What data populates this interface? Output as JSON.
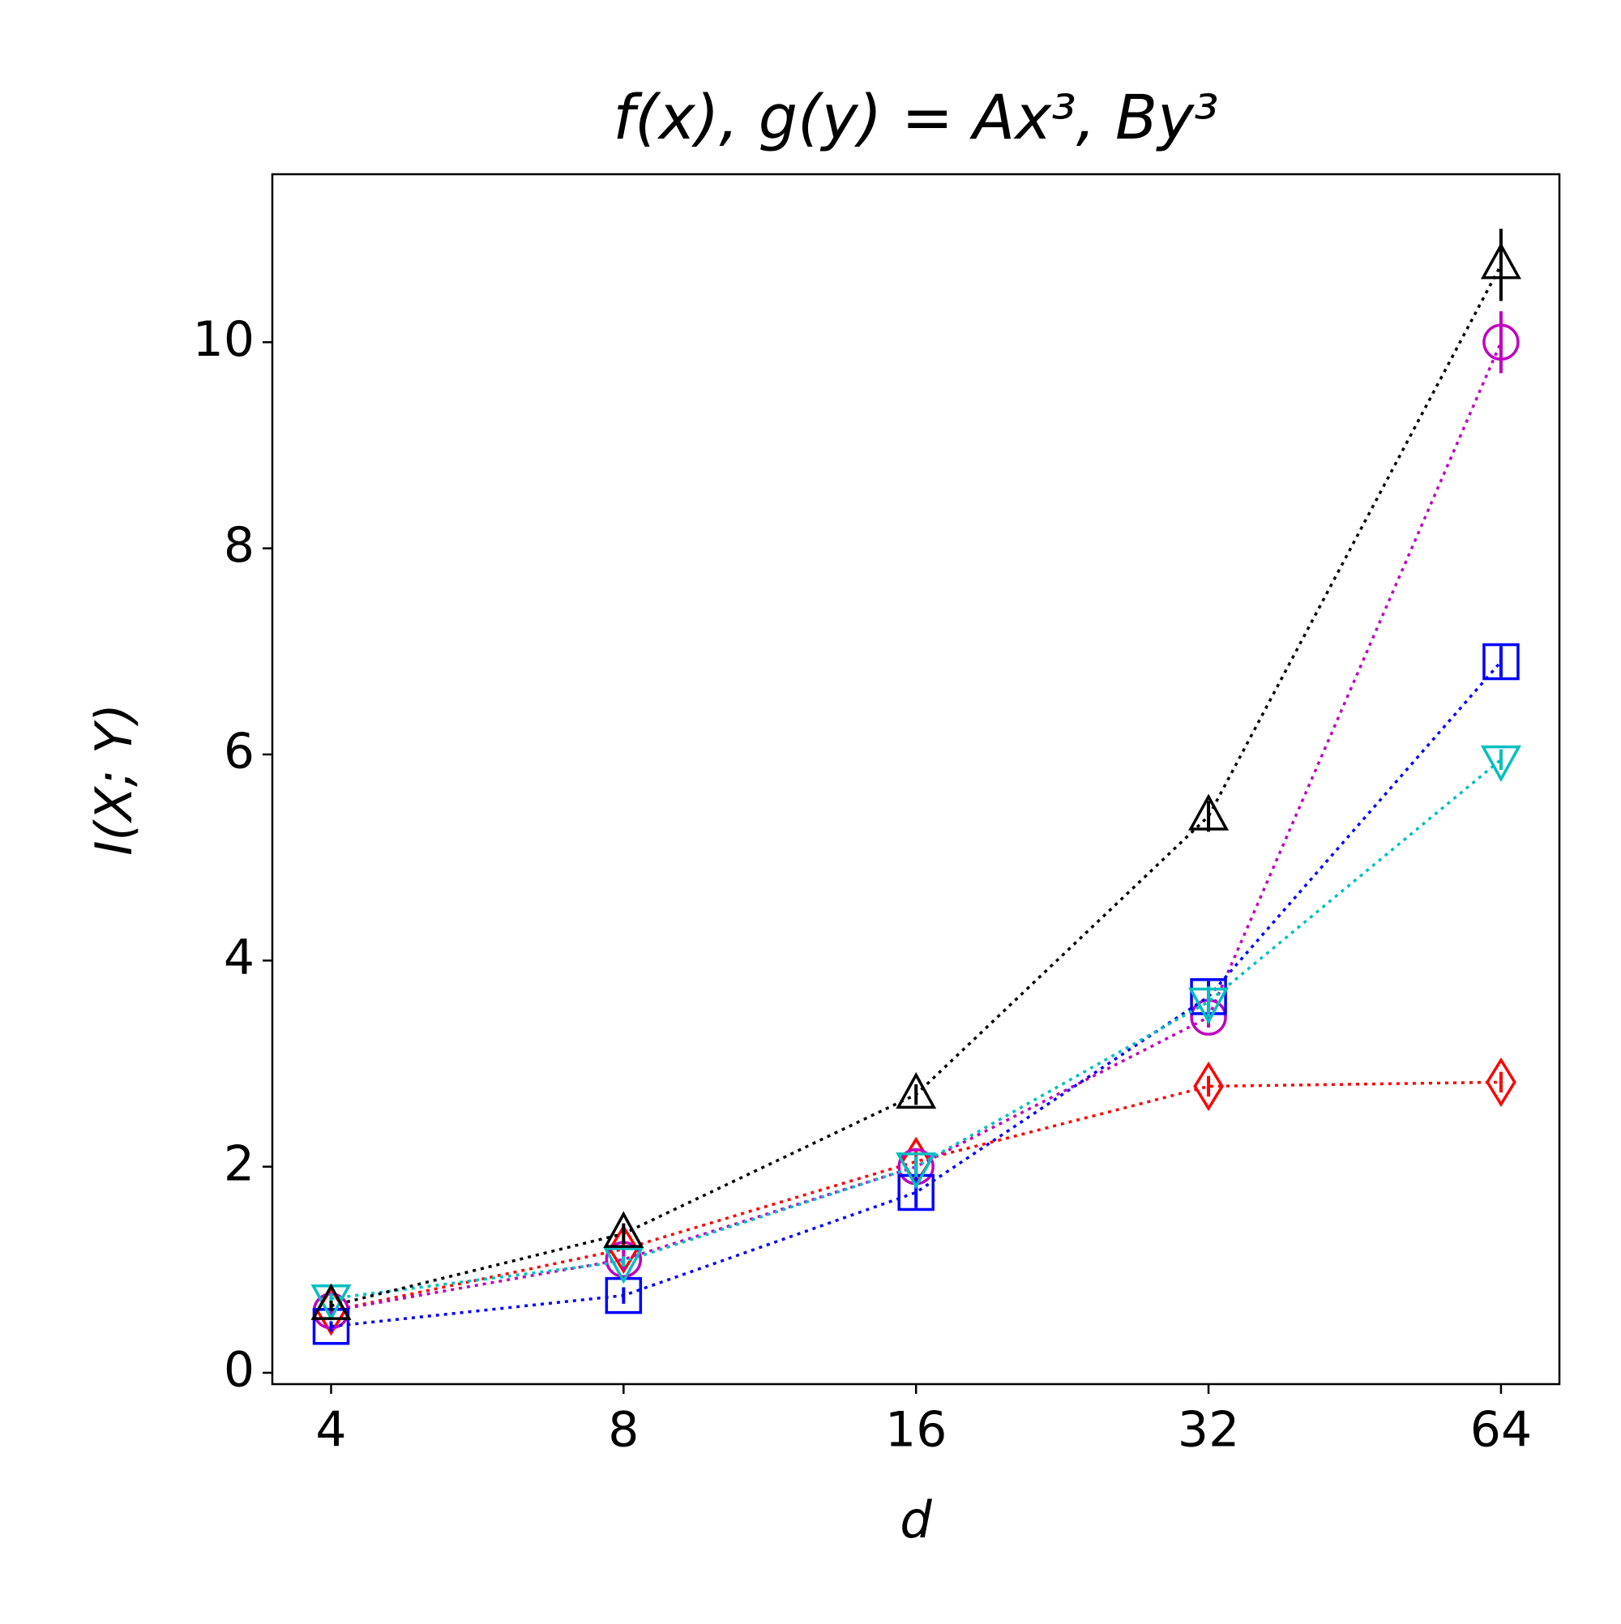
{
  "chart_data": {
    "type": "line",
    "title": "f(x), g(y) = Ax³, By³",
    "x_label": "d",
    "y_label": "I(X; Y)",
    "x": [
      4,
      8,
      16,
      32,
      64
    ],
    "x_scale": "log2",
    "xlim": [
      3.48,
      73.5
    ],
    "xticks": [
      4,
      8,
      16,
      32,
      64
    ],
    "ylim": [
      -0.11,
      11.63
    ],
    "yticks": [
      0,
      2,
      4,
      6,
      8,
      10
    ],
    "grid": false,
    "series": [
      {
        "color": "#ff0000",
        "marker": "diamond",
        "values": [
          0.6,
          1.2,
          2.05,
          2.78,
          2.82
        ],
        "errors": [
          0.05,
          0.05,
          0.1,
          0.1,
          0.1
        ]
      },
      {
        "color": "#bf00bf",
        "marker": "circle",
        "values": [
          0.6,
          1.1,
          2.0,
          3.45,
          10.0
        ],
        "errors": [
          0.05,
          0.1,
          0.1,
          0.1,
          0.3
        ]
      },
      {
        "color": "#0000ff",
        "marker": "square",
        "values": [
          0.45,
          0.75,
          1.75,
          3.65,
          6.9
        ],
        "errors": [
          0.05,
          0.08,
          0.15,
          0.15,
          0.15
        ]
      },
      {
        "color": "#00bfbf",
        "marker": "triangle-down",
        "values": [
          0.72,
          1.08,
          2.0,
          3.6,
          5.95
        ],
        "errors": [
          0.05,
          0.05,
          0.1,
          0.15,
          0.1
        ]
      },
      {
        "color": "#000000",
        "marker": "triangle-up",
        "values": [
          0.65,
          1.35,
          2.7,
          5.4,
          10.75
        ],
        "errors": [
          0.05,
          0.1,
          0.1,
          0.15,
          0.35
        ]
      }
    ]
  }
}
